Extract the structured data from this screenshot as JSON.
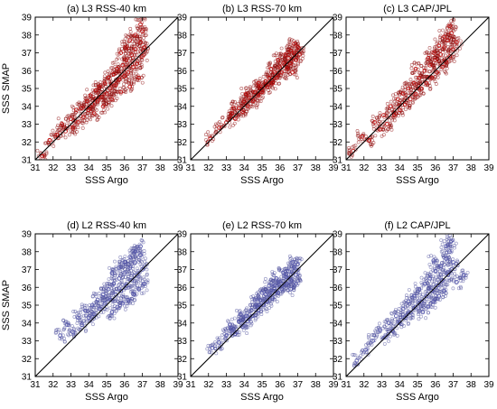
{
  "chart_data": [
    {
      "type": "scatter",
      "title": "(a) L3 RSS-40 km",
      "xlabel": "SSS Argo",
      "ylabel": "SSS SMAP",
      "xlim": [
        31,
        39
      ],
      "ylim": [
        31,
        39
      ],
      "ticks": [
        31,
        32,
        33,
        34,
        35,
        36,
        37,
        38,
        39
      ],
      "marker_color": "#8b0000",
      "marker_edge": "#c01010",
      "reference_line": {
        "x": [
          31,
          39
        ],
        "y": [
          31,
          39
        ]
      },
      "points": [
        [
          31.4,
          31.2
        ],
        [
          31.8,
          32.1
        ],
        [
          32.2,
          32.4
        ],
        [
          32.5,
          33.0
        ],
        [
          32.7,
          32.6
        ],
        [
          33.0,
          33.3
        ],
        [
          33.1,
          32.8
        ],
        [
          33.3,
          33.8
        ],
        [
          33.4,
          33.1
        ],
        [
          33.6,
          33.9
        ],
        [
          33.7,
          33.4
        ],
        [
          33.9,
          34.3
        ],
        [
          34.0,
          33.8
        ],
        [
          34.1,
          34.6
        ],
        [
          34.2,
          34.1
        ],
        [
          34.3,
          33.6
        ],
        [
          34.4,
          34.9
        ],
        [
          34.5,
          34.3
        ],
        [
          34.6,
          35.1
        ],
        [
          34.7,
          34.5
        ],
        [
          34.8,
          34.0
        ],
        [
          34.9,
          35.3
        ],
        [
          35.0,
          34.7
        ],
        [
          35.1,
          35.6
        ],
        [
          35.2,
          35.0
        ],
        [
          35.3,
          34.4
        ],
        [
          35.4,
          35.8
        ],
        [
          35.5,
          35.2
        ],
        [
          35.6,
          36.1
        ],
        [
          35.7,
          35.5
        ],
        [
          35.8,
          34.8
        ],
        [
          35.9,
          36.3
        ],
        [
          36.0,
          35.7
        ],
        [
          36.1,
          36.6
        ],
        [
          36.2,
          35.9
        ],
        [
          36.3,
          35.1
        ],
        [
          36.4,
          36.9
        ],
        [
          36.5,
          36.2
        ],
        [
          36.6,
          37.2
        ],
        [
          36.7,
          36.4
        ],
        [
          36.8,
          35.6
        ],
        [
          36.9,
          37.6
        ],
        [
          37.0,
          36.8
        ],
        [
          37.0,
          38.2
        ],
        [
          37.1,
          37.3
        ],
        [
          36.9,
          38.6
        ],
        [
          36.6,
          38.0
        ],
        [
          36.3,
          37.7
        ],
        [
          36.1,
          37.3
        ],
        [
          35.8,
          37.0
        ]
      ]
    },
    {
      "type": "scatter",
      "title": "(b) L3 RSS-70 km",
      "xlabel": "SSS Argo",
      "ylabel": "",
      "xlim": [
        31,
        39
      ],
      "ylim": [
        31,
        39
      ],
      "ticks": [
        31,
        32,
        33,
        34,
        35,
        36,
        37,
        38,
        39
      ],
      "marker_color": "#8b0000",
      "marker_edge": "#c01010",
      "reference_line": {
        "x": [
          31,
          39
        ],
        "y": [
          31,
          39
        ]
      },
      "points": [
        [
          32.1,
          32.2
        ],
        [
          32.6,
          32.8
        ],
        [
          33.0,
          33.1
        ],
        [
          33.3,
          33.6
        ],
        [
          33.5,
          33.3
        ],
        [
          33.7,
          33.9
        ],
        [
          33.9,
          33.7
        ],
        [
          34.0,
          34.3
        ],
        [
          34.2,
          34.0
        ],
        [
          34.3,
          34.5
        ],
        [
          34.5,
          34.3
        ],
        [
          34.6,
          34.8
        ],
        [
          34.8,
          34.6
        ],
        [
          34.9,
          35.1
        ],
        [
          35.0,
          34.8
        ],
        [
          35.2,
          35.4
        ],
        [
          35.3,
          35.1
        ],
        [
          35.4,
          35.6
        ],
        [
          35.6,
          35.3
        ],
        [
          35.7,
          35.9
        ],
        [
          35.8,
          35.6
        ],
        [
          36.0,
          36.2
        ],
        [
          36.1,
          35.9
        ],
        [
          36.2,
          36.4
        ],
        [
          36.4,
          36.1
        ],
        [
          36.5,
          36.7
        ],
        [
          36.6,
          36.4
        ],
        [
          36.8,
          37.0
        ],
        [
          36.9,
          36.6
        ],
        [
          37.0,
          37.3
        ],
        [
          36.8,
          37.5
        ],
        [
          36.6,
          37.1
        ],
        [
          37.1,
          36.9
        ],
        [
          36.3,
          36.9
        ],
        [
          35.9,
          36.6
        ],
        [
          36.7,
          35.9
        ],
        [
          35.5,
          36.1
        ],
        [
          34.8,
          35.3
        ],
        [
          34.1,
          34.7
        ],
        [
          33.4,
          33.9
        ]
      ]
    },
    {
      "type": "scatter",
      "title": "(c) L3 CAP/JPL",
      "xlabel": "SSS Argo",
      "ylabel": "",
      "xlim": [
        31,
        39
      ],
      "ylim": [
        31,
        39
      ],
      "ticks": [
        31,
        32,
        33,
        34,
        35,
        36,
        37,
        38,
        39
      ],
      "marker_color": "#8b0000",
      "marker_edge": "#c01010",
      "reference_line": {
        "x": [
          31,
          39
        ],
        "y": [
          31,
          39
        ]
      },
      "points": [
        [
          31.4,
          31.5
        ],
        [
          31.9,
          32.3
        ],
        [
          32.3,
          32.1
        ],
        [
          32.6,
          33.1
        ],
        [
          32.9,
          32.7
        ],
        [
          33.1,
          33.5
        ],
        [
          33.3,
          33.0
        ],
        [
          33.5,
          34.0
        ],
        [
          33.7,
          33.5
        ],
        [
          33.9,
          34.4
        ],
        [
          34.0,
          33.8
        ],
        [
          34.2,
          34.7
        ],
        [
          34.3,
          34.1
        ],
        [
          34.5,
          35.0
        ],
        [
          34.6,
          34.4
        ],
        [
          34.8,
          35.3
        ],
        [
          34.9,
          34.7
        ],
        [
          35.1,
          35.6
        ],
        [
          35.2,
          35.0
        ],
        [
          35.4,
          36.0
        ],
        [
          35.5,
          35.3
        ],
        [
          35.7,
          36.3
        ],
        [
          35.8,
          35.6
        ],
        [
          36.0,
          36.6
        ],
        [
          36.1,
          35.9
        ],
        [
          36.3,
          36.9
        ],
        [
          36.4,
          36.2
        ],
        [
          36.5,
          37.3
        ],
        [
          36.6,
          36.5
        ],
        [
          36.7,
          37.7
        ],
        [
          36.8,
          36.8
        ],
        [
          36.9,
          38.1
        ],
        [
          37.0,
          37.2
        ],
        [
          36.8,
          38.5
        ],
        [
          36.5,
          37.9
        ],
        [
          37.2,
          37.6
        ],
        [
          36.2,
          37.4
        ],
        [
          35.9,
          37.0
        ],
        [
          35.6,
          36.7
        ],
        [
          34.9,
          36.1
        ]
      ]
    },
    {
      "type": "scatter",
      "title": "(d) L2 RSS-40 km",
      "xlabel": "SSS Argo",
      "ylabel": "SSS SMAP",
      "xlim": [
        31,
        39
      ],
      "ylim": [
        31,
        39
      ],
      "ticks": [
        31,
        32,
        33,
        34,
        35,
        36,
        37,
        38,
        39
      ],
      "marker_color": "#4b4d9a",
      "marker_edge": "#5a5cb0",
      "reference_line": {
        "x": [
          31,
          39
        ],
        "y": [
          31,
          39
        ]
      },
      "points": [
        [
          32.4,
          33.3
        ],
        [
          32.8,
          33.9
        ],
        [
          33.1,
          33.5
        ],
        [
          33.4,
          34.3
        ],
        [
          33.6,
          33.9
        ],
        [
          33.8,
          34.7
        ],
        [
          34.0,
          34.3
        ],
        [
          34.2,
          35.0
        ],
        [
          34.3,
          34.5
        ],
        [
          34.5,
          35.3
        ],
        [
          34.6,
          34.8
        ],
        [
          34.8,
          35.6
        ],
        [
          34.9,
          35.1
        ],
        [
          35.1,
          35.9
        ],
        [
          35.2,
          35.3
        ],
        [
          35.3,
          34.6
        ],
        [
          35.4,
          36.2
        ],
        [
          35.5,
          35.6
        ],
        [
          35.6,
          34.9
        ],
        [
          35.7,
          36.5
        ],
        [
          35.8,
          35.8
        ],
        [
          35.9,
          35.1
        ],
        [
          36.0,
          36.8
        ],
        [
          36.1,
          36.1
        ],
        [
          36.2,
          35.3
        ],
        [
          36.3,
          37.1
        ],
        [
          36.4,
          36.4
        ],
        [
          36.5,
          35.6
        ],
        [
          36.6,
          37.4
        ],
        [
          36.7,
          36.7
        ],
        [
          36.8,
          35.9
        ],
        [
          36.9,
          37.8
        ],
        [
          37.0,
          37.0
        ],
        [
          36.9,
          38.3
        ],
        [
          36.6,
          38.0
        ],
        [
          36.3,
          37.7
        ],
        [
          37.1,
          36.2
        ],
        [
          36.0,
          37.4
        ],
        [
          35.7,
          37.1
        ],
        [
          35.3,
          36.8
        ]
      ]
    },
    {
      "type": "scatter",
      "title": "(e) L2 RSS-70 km",
      "xlabel": "SSS Argo",
      "ylabel": "",
      "xlim": [
        31,
        39
      ],
      "ylim": [
        31,
        39
      ],
      "ticks": [
        31,
        32,
        33,
        34,
        35,
        36,
        37,
        38,
        39
      ],
      "marker_color": "#4b4d9a",
      "marker_edge": "#5a5cb0",
      "reference_line": {
        "x": [
          31,
          39
        ],
        "y": [
          31,
          39
        ]
      },
      "points": [
        [
          32.2,
          32.6
        ],
        [
          32.6,
          32.9
        ],
        [
          33.0,
          33.3
        ],
        [
          33.3,
          33.7
        ],
        [
          33.5,
          33.4
        ],
        [
          33.7,
          34.1
        ],
        [
          33.9,
          33.8
        ],
        [
          34.1,
          34.4
        ],
        [
          34.2,
          34.1
        ],
        [
          34.4,
          34.7
        ],
        [
          34.5,
          34.4
        ],
        [
          34.7,
          35.0
        ],
        [
          34.8,
          34.7
        ],
        [
          34.9,
          35.3
        ],
        [
          35.1,
          35.0
        ],
        [
          35.2,
          35.6
        ],
        [
          35.3,
          35.2
        ],
        [
          35.5,
          35.8
        ],
        [
          35.6,
          35.4
        ],
        [
          35.7,
          36.1
        ],
        [
          35.9,
          35.7
        ],
        [
          36.0,
          36.3
        ],
        [
          36.1,
          35.9
        ],
        [
          36.3,
          36.6
        ],
        [
          36.4,
          36.2
        ],
        [
          36.5,
          36.9
        ],
        [
          36.6,
          36.4
        ],
        [
          36.8,
          37.1
        ],
        [
          36.9,
          36.7
        ],
        [
          37.0,
          37.3
        ],
        [
          36.7,
          37.4
        ],
        [
          36.2,
          36.8
        ],
        [
          35.8,
          36.5
        ],
        [
          35.4,
          36.1
        ],
        [
          35.0,
          35.7
        ],
        [
          36.6,
          35.9
        ],
        [
          36.9,
          36.2
        ],
        [
          34.6,
          35.3
        ],
        [
          33.8,
          34.5
        ],
        [
          33.2,
          33.9
        ]
      ]
    },
    {
      "type": "scatter",
      "title": "(f) L2 CAP/JPL",
      "xlabel": "SSS Argo",
      "ylabel": "",
      "xlim": [
        31,
        39
      ],
      "ylim": [
        31,
        39
      ],
      "ticks": [
        31,
        32,
        33,
        34,
        35,
        36,
        37,
        38,
        39
      ],
      "marker_color": "#4b4d9a",
      "marker_edge": "#5a5cb0",
      "reference_line": {
        "x": [
          31,
          39
        ],
        "y": [
          31,
          39
        ]
      },
      "points": [
        [
          31.6,
          31.9
        ],
        [
          32.1,
          32.5
        ],
        [
          32.5,
          33.0
        ],
        [
          32.9,
          33.6
        ],
        [
          33.2,
          33.2
        ],
        [
          33.4,
          34.0
        ],
        [
          33.6,
          33.6
        ],
        [
          33.8,
          34.4
        ],
        [
          34.0,
          34.0
        ],
        [
          34.2,
          34.8
        ],
        [
          34.3,
          34.3
        ],
        [
          34.5,
          35.2
        ],
        [
          34.6,
          34.6
        ],
        [
          34.8,
          35.5
        ],
        [
          34.9,
          34.9
        ],
        [
          35.1,
          35.9
        ],
        [
          35.2,
          35.2
        ],
        [
          35.3,
          34.6
        ],
        [
          35.4,
          36.2
        ],
        [
          35.5,
          35.5
        ],
        [
          35.6,
          34.9
        ],
        [
          35.7,
          36.5
        ],
        [
          35.8,
          35.8
        ],
        [
          35.9,
          35.2
        ],
        [
          36.0,
          36.9
        ],
        [
          36.1,
          36.1
        ],
        [
          36.2,
          35.5
        ],
        [
          36.3,
          37.2
        ],
        [
          36.4,
          36.4
        ],
        [
          36.5,
          35.8
        ],
        [
          36.6,
          37.6
        ],
        [
          36.7,
          36.7
        ],
        [
          36.8,
          38.0
        ],
        [
          36.9,
          37.0
        ],
        [
          36.9,
          38.6
        ],
        [
          37.0,
          37.4
        ],
        [
          36.6,
          38.3
        ],
        [
          37.2,
          36.3
        ],
        [
          37.6,
          36.7
        ],
        [
          35.9,
          37.5
        ]
      ]
    }
  ]
}
